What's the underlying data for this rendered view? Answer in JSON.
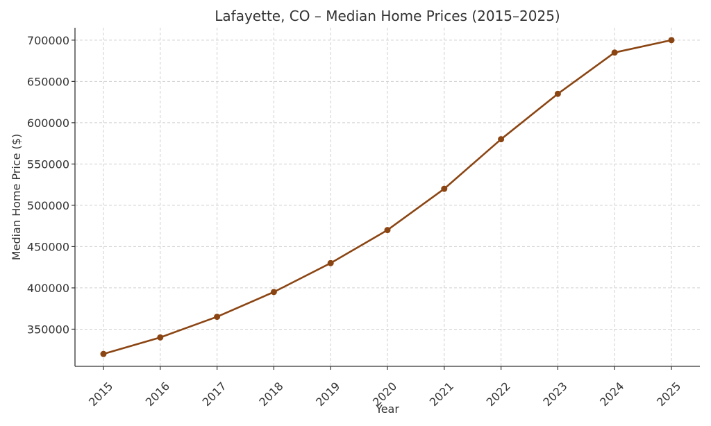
{
  "chart_data": {
    "type": "line",
    "title": "Lafayette, CO – Median Home Prices (2015–2025)",
    "xlabel": "Year",
    "ylabel": "Median Home Price ($)",
    "x": [
      "2015",
      "2016",
      "2017",
      "2018",
      "2019",
      "2020",
      "2021",
      "2022",
      "2023",
      "2024",
      "2025"
    ],
    "series": [
      {
        "values": [
          320000,
          340000,
          365000,
          395000,
          430000,
          470000,
          520000,
          580000,
          635000,
          685000,
          700000
        ],
        "color": "#8B4513"
      }
    ],
    "yticks": [
      350000,
      400000,
      450000,
      500000,
      550000,
      600000,
      650000,
      700000
    ],
    "ylim": [
      305000,
      715000
    ],
    "grid": true,
    "marker": "circle"
  }
}
